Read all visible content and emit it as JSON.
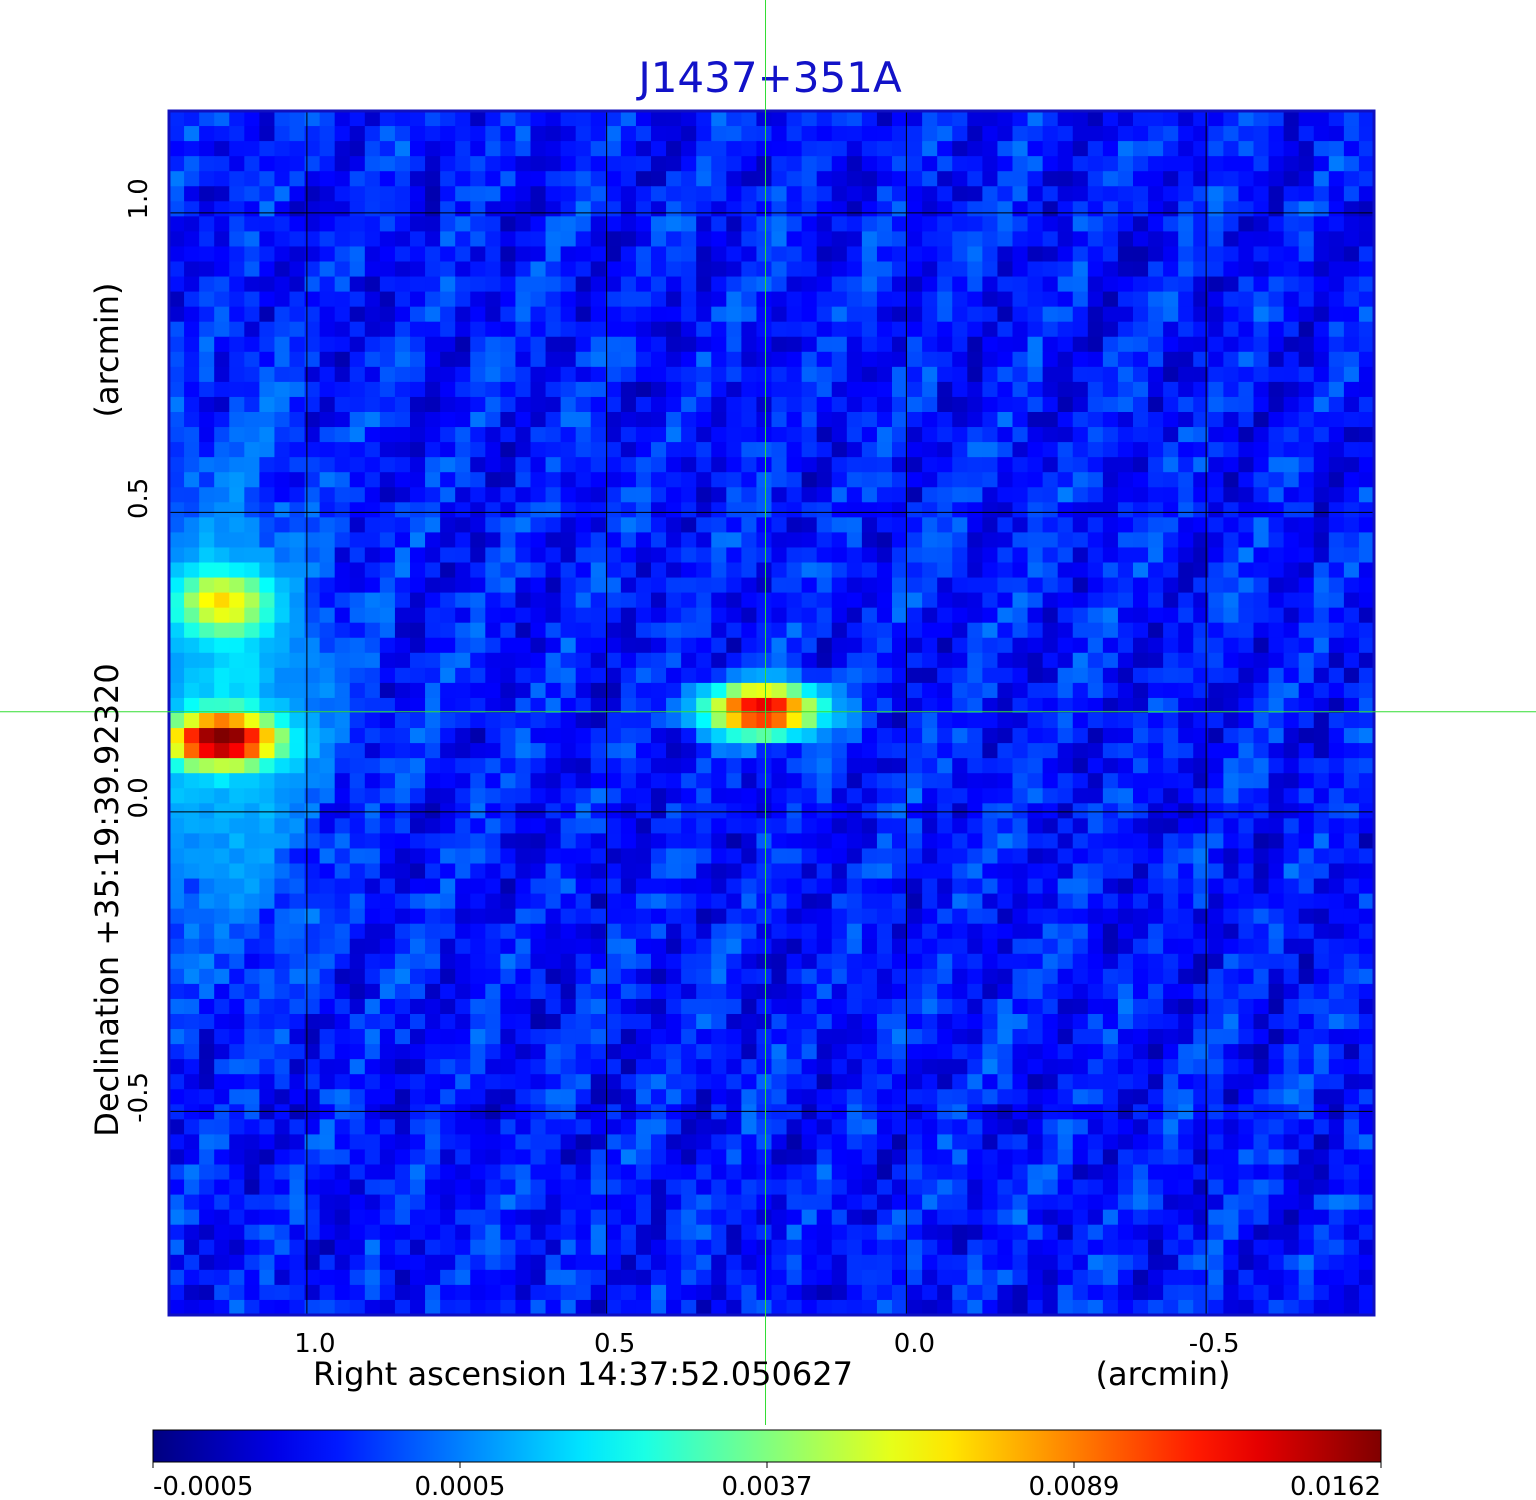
{
  "chart_data": {
    "type": "heatmap",
    "title": "J1437+351A",
    "xlabel": "Right ascension  14:37:52.050627",
    "xlabel_unit": "(arcmin)",
    "ylabel": "Declination  +35:19:39.92320",
    "ylabel_unit": "(arcmin)",
    "xlim": [
      1.23,
      -0.78
    ],
    "ylim": [
      -0.84,
      1.17
    ],
    "x_ticks": [
      1.0,
      0.5,
      0.0,
      -0.5
    ],
    "x_tick_labels": [
      "1.0",
      "0.5",
      "0.0",
      "-0.5"
    ],
    "y_ticks": [
      1.0,
      0.5,
      0.0,
      -0.5
    ],
    "y_tick_labels": [
      "1.0",
      "0.5",
      "0.0",
      "-0.5"
    ],
    "grid": true,
    "crosshair": {
      "x": 0.235,
      "y": 0.167
    },
    "sources": [
      {
        "x": 1.14,
        "y": 0.35,
        "peak": 0.006,
        "sx": 0.045,
        "sy": 0.032
      },
      {
        "x": 1.14,
        "y": 0.12,
        "peak": 0.0162,
        "sx": 0.055,
        "sy": 0.025
      },
      {
        "x": 0.24,
        "y": 0.17,
        "peak": 0.0135,
        "sx": 0.055,
        "sy": 0.025
      }
    ],
    "extended_emission": {
      "x": 1.14,
      "y": 0.18,
      "level": 0.0015,
      "sx": 0.1,
      "sy": 0.22
    },
    "colorbar": {
      "tick_labels": [
        "-0.0005",
        "0.0005",
        "0.0037",
        "0.0089",
        "0.0162"
      ],
      "colormap": "jet"
    },
    "colors": {
      "title": "#1212c8",
      "frame": "#1010c0",
      "grid": "#000000",
      "crosshair": "#33dd33"
    }
  }
}
